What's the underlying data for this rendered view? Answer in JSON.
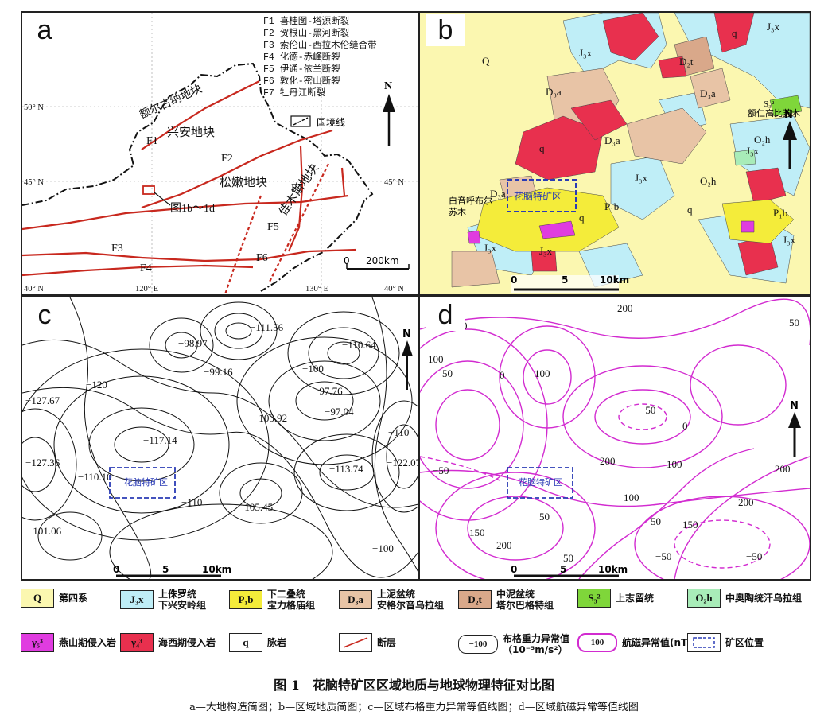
{
  "panels": {
    "a": {
      "label": "a",
      "faults": [
        "F1 喜桂图-塔源断裂",
        "F2 贺根山-黑河断裂",
        "F3 索伦山-西拉木伦缝合带",
        "F4 化德-赤峰断裂",
        "F5 伊通-依兰断裂",
        "F6 敦化-密山断裂",
        "F7 牡丹江断裂"
      ],
      "blocks": {
        "erguna": "额尔古纳地块",
        "xingan": "兴安地块",
        "songnen": "松嫩地块",
        "jiamusi": "佳木斯地块"
      },
      "fault_labels": {
        "f1": "F1",
        "f2": "F2",
        "f3": "F3",
        "f4": "F4",
        "f5": "F5",
        "f6": "F6",
        "f7": "F7"
      },
      "border_legend": "国境线",
      "figref": "图1b～1d",
      "lat": {
        "n50": "50° N",
        "n45": "45° N",
        "n40": "40° N",
        "n50r": "50° N",
        "n45r": "45° N",
        "n40r": "40° N"
      },
      "lon": {
        "e120": "120° E",
        "e130": "130° E"
      },
      "scale": "200km",
      "scale_zero": "0",
      "north": "N"
    },
    "b": {
      "label": "b",
      "units": {
        "Q1": "Q",
        "Q2": "q",
        "D3a1": "D₃a",
        "D3a2": "D₃a",
        "D3a3": "D₃a",
        "D3a4": "D₃a",
        "D2t": "D₂t",
        "J3x1": "J₃x",
        "J3x2": "J₃x",
        "J3x3": "J₃x",
        "J3x4": "J₃x",
        "J3x5": "J₃x",
        "J3x6": "J₃x",
        "J3x7": "J₃x",
        "O2h1": "O₂h",
        "O2h2": "O₂h",
        "P1b1": "P₁b",
        "P1b2": "P₁b",
        "S32": "S₃²",
        "q1": "q",
        "q2": "q",
        "q3": "q"
      },
      "places": {
        "eren": "额仁高比苏木",
        "baiyin1": "白音呼布尔",
        "baiyin2": "苏木"
      },
      "mine": "花脑特矿区",
      "scale": {
        "zero": "0",
        "five": "5",
        "ten": "10km"
      },
      "north": "N"
    },
    "c": {
      "label": "c",
      "values": [
        "−111.56",
        "−98.97",
        "−110.64",
        "−99.16",
        "−100",
        "−97.76",
        "−127.67",
        "−120",
        "−103.92",
        "−97.04",
        "−117.14",
        "−110",
        "−127.36",
        "−110.10",
        "−113.74",
        "−122.07",
        "−105.45",
        "−110",
        "−101.06",
        "−100"
      ],
      "mine": "花脑特矿区",
      "scale": {
        "zero": "0",
        "five": "5",
        "ten": "10km"
      },
      "north": "N"
    },
    "d": {
      "label": "d",
      "values": [
        "200",
        "150",
        "100",
        "50",
        "0",
        "100",
        "50",
        "−50",
        "0",
        "−50",
        "200",
        "100",
        "200",
        "100",
        "50",
        "150",
        "50",
        "150",
        "200",
        "50",
        "200",
        "−50",
        "−50"
      ],
      "mine": "花脑特矿区",
      "scale": {
        "zero": "0",
        "five": "5",
        "ten": "10km"
      },
      "north": "N"
    }
  },
  "legend": [
    {
      "code": "Q",
      "text": "第四系",
      "color": "#fbf7b0"
    },
    {
      "code": "J₃x",
      "text": "上侏罗统\n下兴安岭组",
      "color": "#bfeef7"
    },
    {
      "code": "P₁b",
      "text": "下二叠统\n宝力格庙组",
      "color": "#f4ec3a"
    },
    {
      "code": "D₃a",
      "text": "上泥盆统\n安格尔音乌拉组",
      "color": "#e8c4a6"
    },
    {
      "code": "D₂t",
      "text": "中泥盆统\n塔尔巴格特组",
      "color": "#d9a88a"
    },
    {
      "code": "S₃²",
      "text": "上志留统",
      "color": "#7fd63a"
    },
    {
      "code": "O₂h",
      "text": "中奥陶统汗乌拉组",
      "color": "#a8ecb8"
    },
    {
      "code": "γ₅³",
      "text": "燕山期侵入岩",
      "color": "#e03ce0"
    },
    {
      "code": "γ₄³",
      "text": "海西期侵入岩",
      "color": "#e8304e"
    },
    {
      "code": "q",
      "text": "脉岩",
      "color": "#ffffff"
    },
    {
      "code": "",
      "text": "断层",
      "color": "#ffffff"
    },
    {
      "code": "−100",
      "text": "布格重力异常值\n（10⁻⁵m/s²）",
      "color": "#ffffff"
    },
    {
      "code": "100",
      "text": "航磁异常值(nT)",
      "color": "#ffffff"
    },
    {
      "code": "",
      "text": "矿区位置",
      "color": "#ffffff"
    }
  ],
  "caption": {
    "title": "图 1　花脑特矿区区域地质与地球物理特征对比图",
    "sub": "a—大地构造简图；b—区域地质简图；c—区域布格重力异常等值线图；d—区域航磁异常等值线图"
  }
}
